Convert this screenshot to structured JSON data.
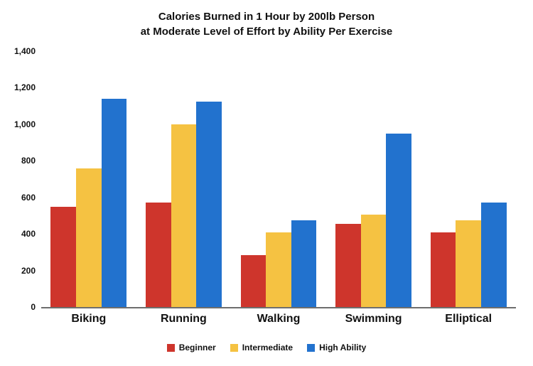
{
  "title": {
    "line1": "Calories Burned in 1 Hour by 200lb Person",
    "line2": "at Moderate Level of Effort by Ability Per Exercise"
  },
  "chart_data": {
    "type": "bar",
    "title": "Calories Burned in 1 Hour by 200lb Person at Moderate Level of Effort by Ability Per Exercise",
    "categories": [
      "Biking",
      "Running",
      "Walking",
      "Swimming",
      "Elliptical"
    ],
    "series": [
      {
        "name": "Beginner",
        "color": "#CE352C",
        "values": [
          550,
          570,
          285,
          455,
          410
        ]
      },
      {
        "name": "Intermediate",
        "color": "#F5C242",
        "values": [
          760,
          1000,
          410,
          505,
          475
        ]
      },
      {
        "name": "High Ability",
        "color": "#2272CE",
        "values": [
          1140,
          1125,
          475,
          950,
          570
        ]
      }
    ],
    "xlabel": "",
    "ylabel": "",
    "ylim": [
      0,
      1400
    ],
    "y_ticks": [
      0,
      200,
      400,
      600,
      800,
      1000,
      1200,
      1400
    ],
    "y_tick_labels": [
      "0",
      "200",
      "400",
      "600",
      "800",
      "1,000",
      "1,200",
      "1,400"
    ],
    "grid": false,
    "legend_position": "bottom"
  }
}
